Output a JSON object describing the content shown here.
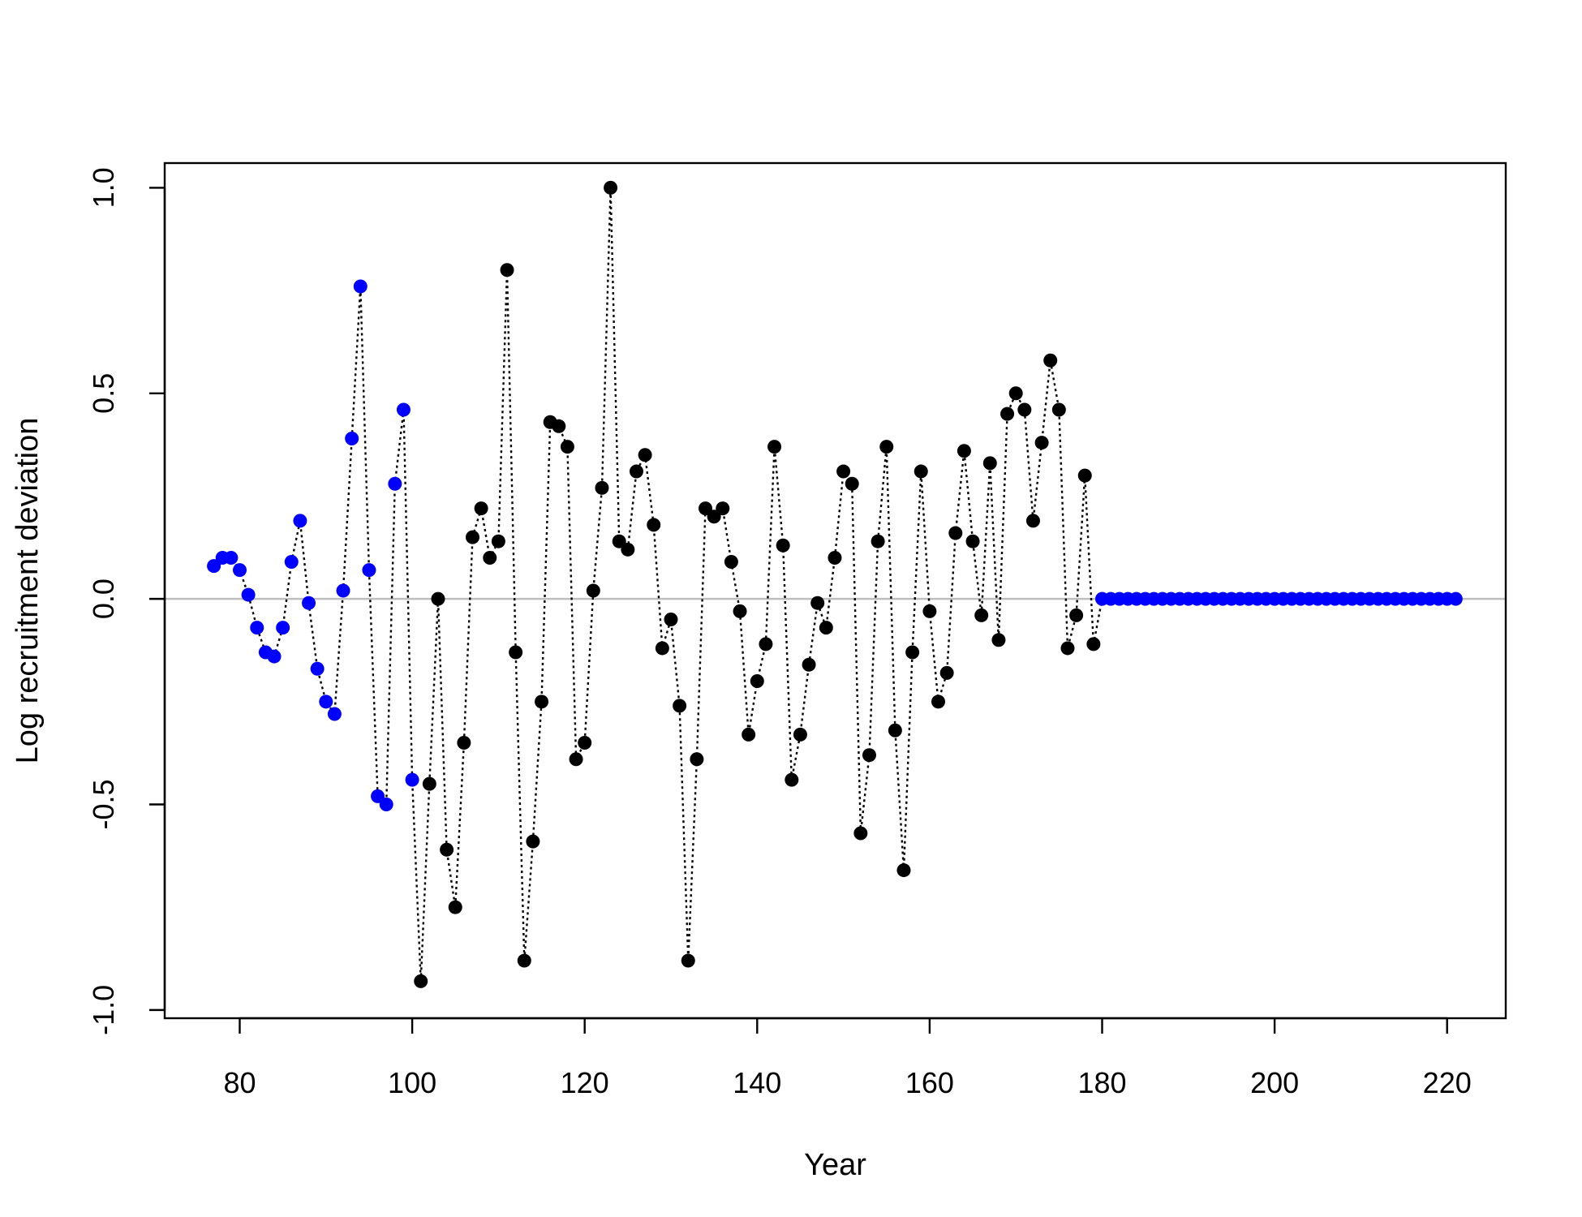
{
  "chart_data": {
    "type": "scatter",
    "title": "",
    "xlabel": "Year",
    "ylabel": "Log recruitment deviation",
    "xlim": [
      71.3,
      226.8
    ],
    "ylim": [
      -1.02,
      1.06
    ],
    "x_ticks": [
      80,
      100,
      120,
      140,
      160,
      180,
      200,
      220
    ],
    "y_ticks": [
      -1.0,
      -0.5,
      0.0,
      0.5,
      1.0
    ],
    "x_tick_labels": [
      "80",
      "100",
      "120",
      "140",
      "160",
      "180",
      "200",
      "220"
    ],
    "y_tick_labels": [
      "-1.0",
      "-0.5",
      "0.0",
      "0.5",
      "1.0"
    ],
    "reference_line_y": 0,
    "colors": {
      "early_series": "#0000ff",
      "main_series": "#000000",
      "forecast_series": "#0000ff",
      "reference_line": "#bebebe",
      "connecting_line": "#000000"
    },
    "x": [
      77,
      78,
      79,
      80,
      81,
      82,
      83,
      84,
      85,
      86,
      87,
      88,
      89,
      90,
      91,
      92,
      93,
      94,
      95,
      96,
      97,
      98,
      99,
      100,
      101,
      102,
      103,
      104,
      105,
      106,
      107,
      108,
      109,
      110,
      111,
      112,
      113,
      114,
      115,
      116,
      117,
      118,
      119,
      120,
      121,
      122,
      123,
      124,
      125,
      126,
      127,
      128,
      129,
      130,
      131,
      132,
      133,
      134,
      135,
      136,
      137,
      138,
      139,
      140,
      141,
      142,
      143,
      144,
      145,
      146,
      147,
      148,
      149,
      150,
      151,
      152,
      153,
      154,
      155,
      156,
      157,
      158,
      159,
      160,
      161,
      162,
      163,
      164,
      165,
      166,
      167,
      168,
      169,
      170,
      171,
      172,
      173,
      174,
      175,
      176,
      177,
      178,
      179,
      180,
      181,
      182,
      183,
      184,
      185,
      186,
      187,
      188,
      189,
      190,
      191,
      192,
      193,
      194,
      195,
      196,
      197,
      198,
      199,
      200,
      201,
      202,
      203,
      204,
      205,
      206,
      207,
      208,
      209,
      210,
      211,
      212,
      213,
      214,
      215,
      216,
      217,
      218,
      219,
      220,
      221
    ],
    "y": [
      0.08,
      0.1,
      0.1,
      0.07,
      0.01,
      -0.07,
      -0.13,
      -0.14,
      -0.07,
      0.09,
      0.19,
      -0.01,
      -0.17,
      -0.25,
      -0.28,
      0.02,
      0.39,
      0.76,
      0.07,
      -0.48,
      -0.5,
      0.28,
      0.46,
      -0.44,
      -0.93,
      -0.45,
      0.0,
      -0.61,
      -0.75,
      -0.35,
      0.15,
      0.22,
      0.1,
      0.14,
      0.8,
      -0.13,
      -0.88,
      -0.59,
      -0.25,
      0.43,
      0.42,
      0.37,
      -0.39,
      -0.35,
      0.02,
      0.27,
      1.0,
      0.14,
      0.12,
      0.31,
      0.35,
      0.18,
      -0.12,
      -0.05,
      -0.26,
      -0.88,
      -0.39,
      0.22,
      0.2,
      0.22,
      0.09,
      -0.03,
      -0.33,
      -0.2,
      -0.11,
      0.37,
      0.13,
      -0.44,
      -0.33,
      -0.16,
      -0.01,
      -0.07,
      0.1,
      0.31,
      0.28,
      -0.57,
      -0.38,
      0.14,
      0.37,
      -0.32,
      -0.66,
      -0.13,
      0.31,
      -0.03,
      -0.25,
      -0.18,
      0.16,
      0.36,
      0.14,
      -0.04,
      0.33,
      -0.1,
      0.45,
      0.5,
      0.46,
      0.19,
      0.38,
      0.58,
      0.46,
      -0.12,
      -0.04,
      0.3,
      -0.11,
      0,
      0,
      0,
      0,
      0,
      0,
      0,
      0,
      0,
      0,
      0,
      0,
      0,
      0,
      0,
      0,
      0,
      0,
      0,
      0,
      0,
      0,
      0,
      0,
      0,
      0,
      0,
      0,
      0,
      0,
      0,
      0,
      0,
      0,
      0,
      0,
      0,
      0,
      0,
      0,
      0,
      0
    ],
    "series": [
      {
        "group": "early",
        "x_range": [
          77,
          100
        ],
        "color": "#0000ff"
      },
      {
        "group": "main",
        "x_range": [
          101,
          179
        ],
        "color": "#000000"
      },
      {
        "group": "forecast",
        "x_range": [
          180,
          221
        ],
        "color": "#0000ff"
      }
    ]
  }
}
